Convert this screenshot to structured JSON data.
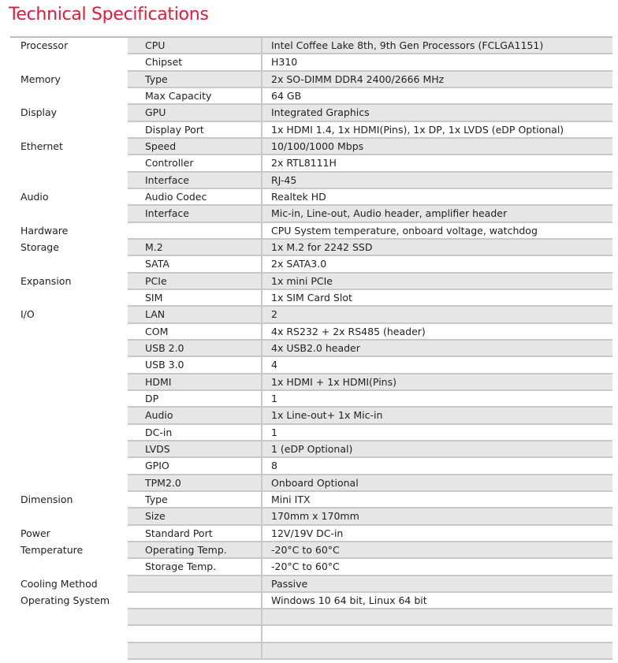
{
  "title": "Technical Specifications",
  "colors": {
    "title": "#e8173a",
    "alt_row": "#e6e6e8",
    "rule": "#c9c9c9"
  },
  "rows": [
    {
      "category": "Processor",
      "item": "CPU",
      "value": "Intel Coffee Lake 8th, 9th Gen Processors (FCLGA1151)"
    },
    {
      "category": "",
      "item": "Chipset",
      "value": "H310"
    },
    {
      "category": "Memory",
      "item": "Type",
      "value": "2x SO-DIMM DDR4 2400/2666 MHz"
    },
    {
      "category": "",
      "item": "Max Capacity",
      "value": "64 GB"
    },
    {
      "category": "Display",
      "item": "GPU",
      "value": "Integrated Graphics"
    },
    {
      "category": "",
      "item": "Display Port",
      "value": "1x HDMI 1.4,  1x HDMI(Pins), 1x DP, 1x LVDS (eDP Optional)"
    },
    {
      "category": "Ethernet",
      "item": "Speed",
      "value": "10/100/1000 Mbps"
    },
    {
      "category": "",
      "item": "Controller",
      "value": "2x RTL8111H"
    },
    {
      "category": "",
      "item": "Interface",
      "value": "RJ-45"
    },
    {
      "category": "Audio",
      "item": "Audio Codec",
      "value": "Realtek HD"
    },
    {
      "category": "",
      "item": "Interface",
      "value": "Mic-in, Line-out, Audio header, amplifier header"
    },
    {
      "category": "Hardware",
      "item": "",
      "value": "CPU System temperature, onboard voltage, watchdog"
    },
    {
      "category": "Storage",
      "item": "M.2",
      "value": "1x M.2 for 2242 SSD"
    },
    {
      "category": "",
      "item": "SATA",
      "value": "2x SATA3.0"
    },
    {
      "category": "Expansion",
      "item": "PCIe",
      "value": "1x mini PCIe"
    },
    {
      "category": "",
      "item": "SIM",
      "value": "1x SIM Card Slot"
    },
    {
      "category": "I/O",
      "item": "LAN",
      "value": "2"
    },
    {
      "category": "",
      "item": "COM",
      "value": "4x RS232 + 2x RS485 (header)"
    },
    {
      "category": "",
      "item": "USB 2.0",
      "value": "4x USB2.0 header"
    },
    {
      "category": "",
      "item": "USB 3.0",
      "value": "4"
    },
    {
      "category": "",
      "item": "HDMI",
      "value": "1x HDMI + 1x HDMI(Pins)"
    },
    {
      "category": "",
      "item": "DP",
      "value": "1"
    },
    {
      "category": "",
      "item": "Audio",
      "value": "1x Line-out+ 1x Mic-in"
    },
    {
      "category": "",
      "item": "DC-in",
      "value": "1"
    },
    {
      "category": "",
      "item": "LVDS",
      "value": "1 (eDP Optional)"
    },
    {
      "category": "",
      "item": "GPIO",
      "value": "8"
    },
    {
      "category": "",
      "item": "TPM2.0",
      "value": "Onboard Optional"
    },
    {
      "category": "Dimension",
      "item": "Type",
      "value": "Mini ITX"
    },
    {
      "category": "",
      "item": "Size",
      "value": "170mm x 170mm"
    },
    {
      "category": "Power",
      "item": "Standard Port",
      "value": "12V/19V DC-in"
    },
    {
      "category": "Temperature",
      "item": "Operating Temp.",
      "value": "-20°C to 60°C"
    },
    {
      "category": "",
      "item": "Storage Temp.",
      "value": "-20°C to 60°C"
    },
    {
      "category": "Cooling Method",
      "item": "",
      "value": "Passive"
    },
    {
      "category": "Operating System",
      "item": "",
      "value": "Windows 10 64 bit, Linux 64 bit"
    },
    {
      "category": "",
      "item": "",
      "value": ""
    },
    {
      "category": "",
      "item": "",
      "value": ""
    },
    {
      "category": "",
      "item": "",
      "value": ""
    }
  ]
}
